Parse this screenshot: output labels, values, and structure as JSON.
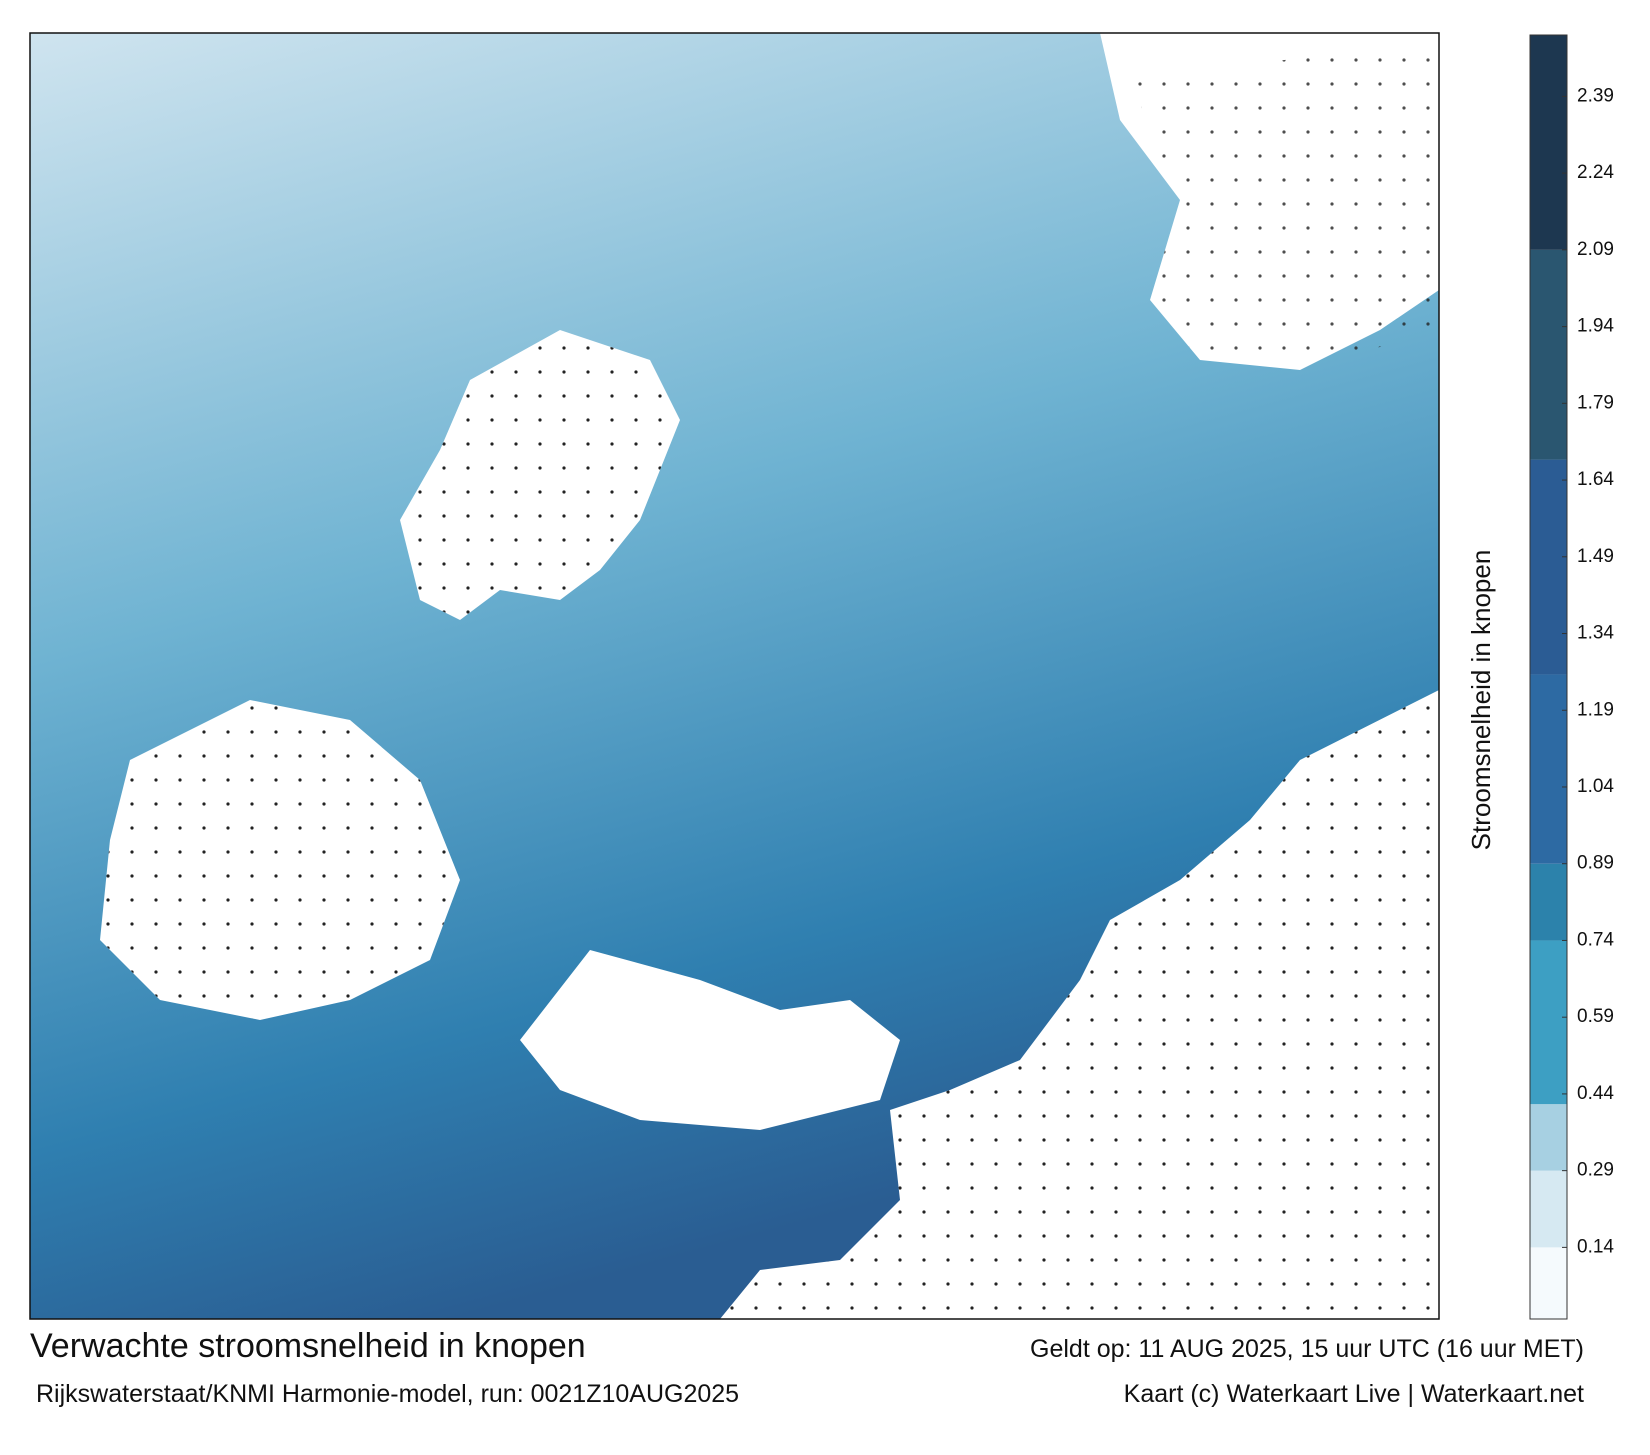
{
  "chart_data": {
    "type": "map",
    "title": "Verwachte stroomsnelheid in knopen",
    "subtitle": "Rijkswaterstaat/KNMI Harmonie-model, run: 0021Z10AUG2025",
    "valid_time": "Geldt op: 11 AUG 2025, 15 uur UTC (16 uur MET)",
    "credit": "Kaart (c) Waterkaart Live | Waterkaart.net",
    "colorbar_label": "Stroomsnelheid in knopen",
    "clim": [
      0,
      2.51
    ],
    "cticks": [
      0.14,
      0.29,
      0.44,
      0.59,
      0.74,
      0.89,
      1.04,
      1.19,
      1.34,
      1.49,
      1.64,
      1.79,
      1.94,
      2.09,
      2.24,
      2.39
    ],
    "colorscale": [
      {
        "value": 0,
        "color": "#f5fafd"
      },
      {
        "value": 0.14,
        "color": "#d6e9f2"
      },
      {
        "value": 0.29,
        "color": "#a7d0e2"
      },
      {
        "value": 0.42,
        "color": "#3d9fc3"
      },
      {
        "value": 0.74,
        "color": "#2c82ab"
      },
      {
        "value": 0.89,
        "color": "#2d6aa3"
      },
      {
        "value": 1.26,
        "color": "#2b5c94"
      },
      {
        "value": 1.68,
        "color": "#2a5670"
      },
      {
        "value": 2.09,
        "color": "#1d3750"
      },
      {
        "value": 2.51,
        "color": "#1a1a3c"
      }
    ]
  }
}
